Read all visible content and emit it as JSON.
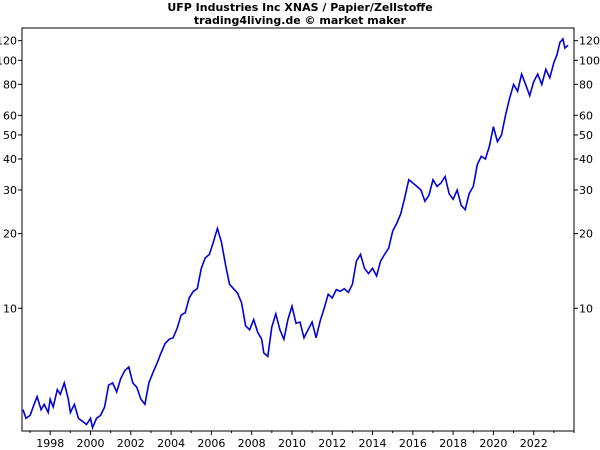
{
  "chart_data": {
    "type": "line",
    "title": "UFP Industries Inc XNAS / Papier/Zellstoffe",
    "subtitle": "trading4living.de © market maker",
    "y_scale": "log",
    "ylim": [
      3.2,
      135
    ],
    "xlim": [
      1996.6,
      2024.0
    ],
    "y_ticks": [
      10,
      20,
      30,
      40,
      50,
      60,
      80,
      100,
      120
    ],
    "x_ticks": [
      1998,
      2000,
      2002,
      2004,
      2006,
      2008,
      2010,
      2012,
      2014,
      2016,
      2018,
      2020,
      2022
    ],
    "grid": false,
    "line_color": "#0000dd",
    "series": [
      {
        "x": [
          1996.65,
          1996.8,
          1997.0,
          1997.2,
          1997.35,
          1997.55,
          1997.7,
          1997.9,
          1998.0,
          1998.15,
          1998.35,
          1998.5,
          1998.7,
          1998.9,
          1999.0,
          1999.2,
          1999.4,
          1999.6,
          1999.8,
          2000.0,
          2000.1,
          2000.3,
          2000.5,
          2000.7,
          2000.9,
          2001.1,
          2001.3,
          2001.5,
          2001.7,
          2001.9,
          2002.1,
          2002.3,
          2002.5,
          2002.7,
          2002.9,
          2003.1,
          2003.3,
          2003.5,
          2003.7,
          2003.9,
          2004.1,
          2004.3,
          2004.5,
          2004.7,
          2004.9,
          2005.1,
          2005.3,
          2005.5,
          2005.7,
          2005.9,
          2006.1,
          2006.3,
          2006.5,
          2006.7,
          2006.9,
          2007.1,
          2007.3,
          2007.5,
          2007.7,
          2007.9,
          2008.1,
          2008.3,
          2008.5,
          2008.6,
          2008.8,
          2009.0,
          2009.2,
          2009.4,
          2009.6,
          2009.8,
          2010.0,
          2010.2,
          2010.4,
          2010.6,
          2010.8,
          2011.0,
          2011.2,
          2011.4,
          2011.6,
          2011.8,
          2012.0,
          2012.2,
          2012.4,
          2012.6,
          2012.8,
          2013.0,
          2013.2,
          2013.4,
          2013.6,
          2013.8,
          2014.0,
          2014.2,
          2014.4,
          2014.6,
          2014.8,
          2015.0,
          2015.2,
          2015.4,
          2015.6,
          2015.8,
          2016.0,
          2016.2,
          2016.4,
          2016.6,
          2016.8,
          2017.0,
          2017.2,
          2017.4,
          2017.6,
          2017.8,
          2018.0,
          2018.2,
          2018.4,
          2018.6,
          2018.8,
          2019.0,
          2019.2,
          2019.4,
          2019.6,
          2019.8,
          2020.0,
          2020.2,
          2020.4,
          2020.6,
          2020.8,
          2021.0,
          2021.2,
          2021.4,
          2021.6,
          2021.8,
          2022.0,
          2022.2,
          2022.4,
          2022.6,
          2022.8,
          2023.0,
          2023.15,
          2023.3,
          2023.45,
          2023.55,
          2023.7
        ],
        "values": [
          3.9,
          3.6,
          3.7,
          4.1,
          4.4,
          3.9,
          4.1,
          3.8,
          4.3,
          4.0,
          4.7,
          4.5,
          5.0,
          4.3,
          3.8,
          4.1,
          3.6,
          3.5,
          3.4,
          3.6,
          3.3,
          3.6,
          3.7,
          4.0,
          4.9,
          5.0,
          4.6,
          5.2,
          5.6,
          5.8,
          5.0,
          4.8,
          4.3,
          4.1,
          5.0,
          5.5,
          6.0,
          6.6,
          7.2,
          7.5,
          7.6,
          8.3,
          9.4,
          9.6,
          11.0,
          11.7,
          12.0,
          14.5,
          16.0,
          16.5,
          18.5,
          21.0,
          18.5,
          15.0,
          12.5,
          12.0,
          11.5,
          10.5,
          8.5,
          8.2,
          9.0,
          8.0,
          7.5,
          6.6,
          6.4,
          8.4,
          9.5,
          8.2,
          7.5,
          9.0,
          10.2,
          8.7,
          8.8,
          7.6,
          8.2,
          8.8,
          7.6,
          8.9,
          10.0,
          11.4,
          11.0,
          11.9,
          11.7,
          12.0,
          11.6,
          12.5,
          15.5,
          16.5,
          14.5,
          13.8,
          14.5,
          13.5,
          15.5,
          16.5,
          17.5,
          20.5,
          22.0,
          24.0,
          28.0,
          33.0,
          32.0,
          31.0,
          30.0,
          27.0,
          28.5,
          33.0,
          31.0,
          32.0,
          34.0,
          29.0,
          27.5,
          30.0,
          26.0,
          25.0,
          29.0,
          31.0,
          38.0,
          41.0,
          40.0,
          45.0,
          54.0,
          47.0,
          50.0,
          60.0,
          70.0,
          80.0,
          75.0,
          88.0,
          80.0,
          72.0,
          82.0,
          88.0,
          80.0,
          92.0,
          85.0,
          98.0,
          105.0,
          118.0,
          122.0,
          112.0,
          115.0
        ]
      }
    ]
  }
}
